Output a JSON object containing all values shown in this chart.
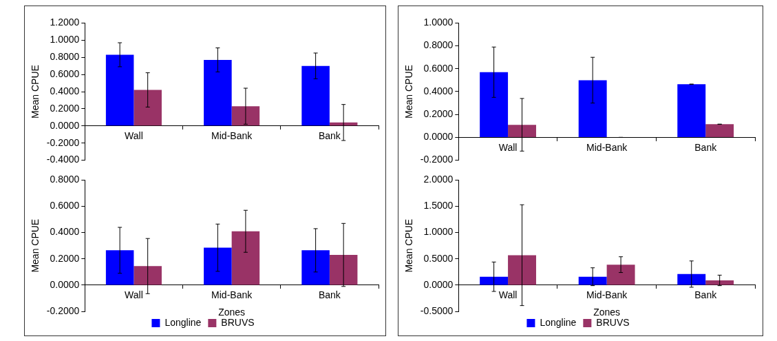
{
  "chart_data": [
    {
      "type": "bar",
      "categories": [
        "Wall",
        "Mid-Bank",
        "Bank"
      ],
      "ylabel": "Mean CPUE",
      "grid": false,
      "legend": false,
      "ylim": [
        -0.4,
        1.2
      ],
      "yticks": [
        {
          "value": -0.4,
          "label": "-0.4000"
        },
        {
          "value": -0.2,
          "label": "-0.2000"
        },
        {
          "value": 0,
          "label": "0.0000"
        },
        {
          "value": 0.2,
          "label": "0.2000"
        },
        {
          "value": 0.4,
          "label": "0.4000"
        },
        {
          "value": 0.6,
          "label": "0.6000"
        },
        {
          "value": 0.8,
          "label": "0.8000"
        },
        {
          "value": 1,
          "label": "1.0000"
        },
        {
          "value": 1.2,
          "label": "1.2000"
        }
      ],
      "series": [
        {
          "color": "#0000ff",
          "values": [
            0.83,
            0.77,
            0.7
          ],
          "errors": [
            0.14,
            0.14,
            0.15
          ]
        },
        {
          "color": "#993366",
          "values": [
            0.42,
            0.23,
            0.04
          ],
          "errors": [
            0.2,
            0.21,
            0.21
          ]
        }
      ]
    },
    {
      "type": "bar",
      "categories": [
        "Wall",
        "Mid-Bank",
        "Bank"
      ],
      "ylabel": "Mean CPUE",
      "grid": false,
      "legend": false,
      "ylim": [
        -0.2,
        1.0
      ],
      "yticks": [
        {
          "value": -0.2,
          "label": "-0.2000"
        },
        {
          "value": 0,
          "label": "0.0000"
        },
        {
          "value": 0.2,
          "label": "0.2000"
        },
        {
          "value": 0.4,
          "label": "0.4000"
        },
        {
          "value": 0.6,
          "label": "0.6000"
        },
        {
          "value": 0.8,
          "label": "0.8000"
        },
        {
          "value": 1,
          "label": "1.0000"
        }
      ],
      "series": [
        {
          "color": "#0000ff",
          "values": [
            0.57,
            0.5,
            0.465
          ],
          "errors": [
            0.22,
            0.2,
            0
          ]
        },
        {
          "color": "#993366",
          "values": [
            0.11,
            0,
            0.115
          ],
          "errors": [
            0.23,
            0,
            0
          ]
        }
      ]
    },
    {
      "type": "bar",
      "categories": [
        "Wall",
        "Mid-Bank",
        "Bank"
      ],
      "ylabel": "Mean CPUE",
      "xlabel": "Zones",
      "grid": false,
      "legend": "bottom",
      "ylim": [
        -0.2,
        0.8
      ],
      "yticks": [
        {
          "value": -0.2,
          "label": "-0.2000"
        },
        {
          "value": 0,
          "label": "0.0000"
        },
        {
          "value": 0.2,
          "label": "0.2000"
        },
        {
          "value": 0.4,
          "label": "0.4000"
        },
        {
          "value": 0.6,
          "label": "0.6000"
        },
        {
          "value": 0.8,
          "label": "0.8000"
        }
      ],
      "series": [
        {
          "name": "Longline",
          "color": "#0000ff",
          "values": [
            0.265,
            0.285,
            0.265
          ],
          "errors": [
            0.175,
            0.18,
            0.165
          ]
        },
        {
          "name": "BRUVS",
          "color": "#993366",
          "values": [
            0.145,
            0.41,
            0.23
          ],
          "errors": [
            0.21,
            0.16,
            0.24
          ]
        }
      ]
    },
    {
      "type": "bar",
      "categories": [
        "Wall",
        "Mid-Bank",
        "Bank"
      ],
      "ylabel": "Mean CPUE",
      "xlabel": "Zones",
      "grid": false,
      "legend": "bottom",
      "ylim": [
        -0.5,
        2.0
      ],
      "yticks": [
        {
          "value": -0.5,
          "label": "-0.5000"
        },
        {
          "value": 0,
          "label": "0.0000"
        },
        {
          "value": 0.5,
          "label": "0.5000"
        },
        {
          "value": 1,
          "label": "1.0000"
        },
        {
          "value": 1.5,
          "label": "1.5000"
        },
        {
          "value": 2,
          "label": "2.0000"
        }
      ],
      "series": [
        {
          "name": "Longline",
          "color": "#0000ff",
          "values": [
            0.16,
            0.16,
            0.21
          ],
          "errors": [
            0.28,
            0.17,
            0.25
          ]
        },
        {
          "name": "BRUVS",
          "color": "#993366",
          "values": [
            0.57,
            0.39,
            0.09
          ],
          "errors": [
            0.96,
            0.15,
            0.1
          ]
        }
      ]
    }
  ]
}
